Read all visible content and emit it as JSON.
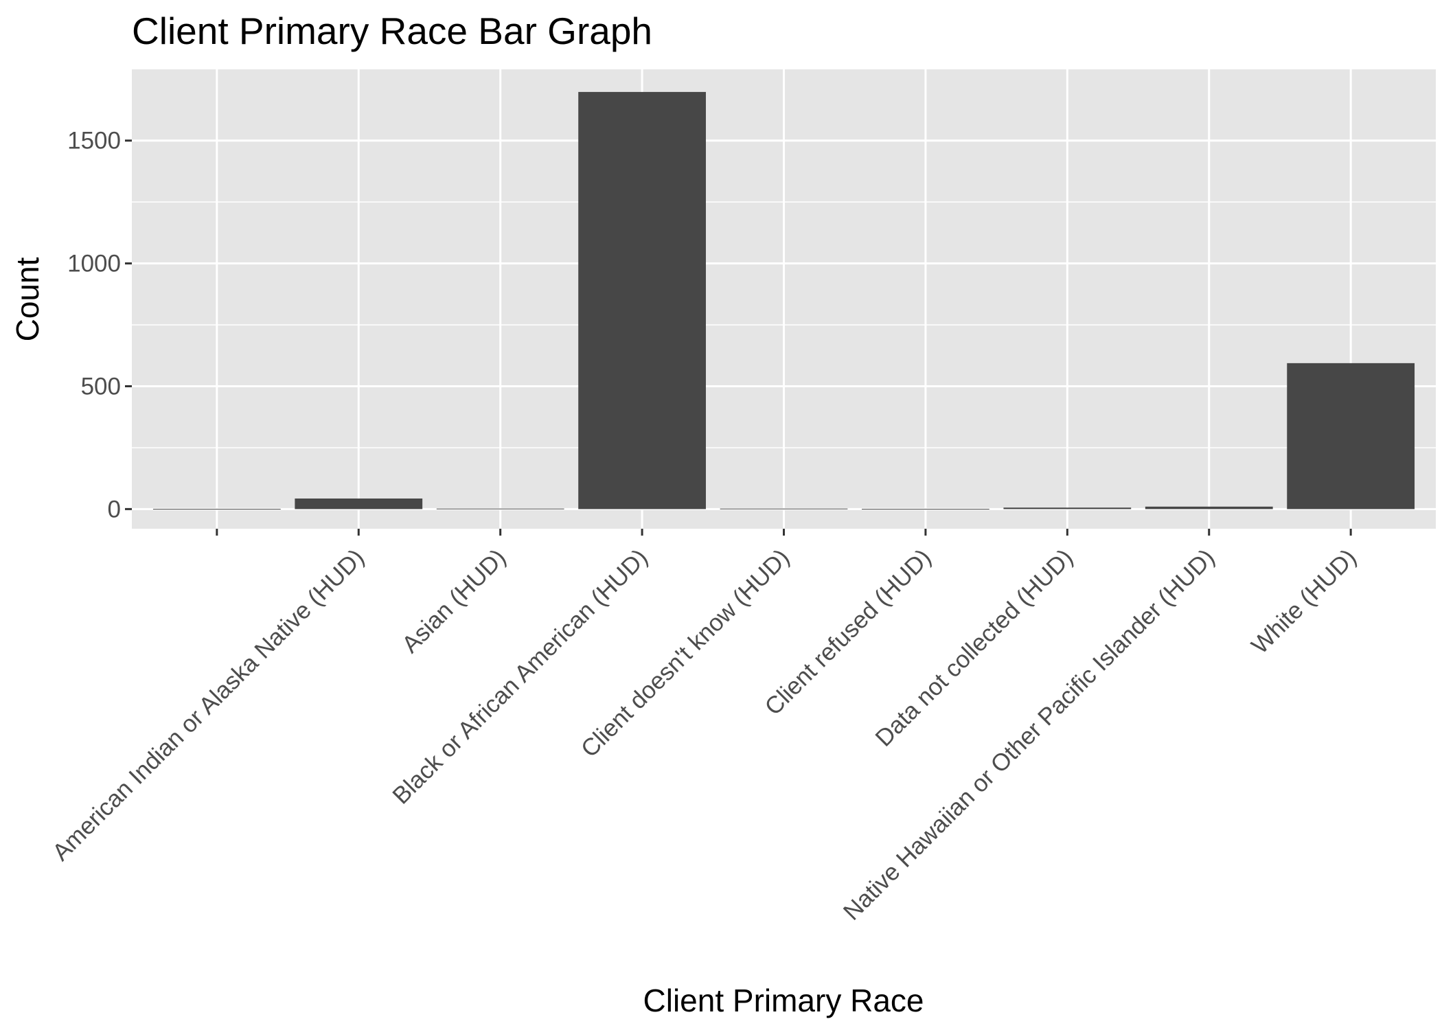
{
  "chart_data": {
    "type": "bar",
    "title": "Client Primary Race Bar Graph",
    "xlabel": "Client Primary Race",
    "ylabel": "Count",
    "categories": [
      "",
      "American Indian or Alaska Native (HUD)",
      "Asian (HUD)",
      "Black or African American (HUD)",
      "Client doesn't know (HUD)",
      "Client refused (HUD)",
      "Data not collected (HUD)",
      "Native Hawaiian or Other Pacific Islander (HUD)",
      "White (HUD)"
    ],
    "values": [
      1,
      43,
      2,
      1698,
      2,
      1,
      6,
      10,
      594
    ],
    "ylim": [
      -80,
      1790
    ],
    "yticks": [
      0,
      500,
      1000,
      1500
    ],
    "ytick_labels": [
      "0",
      "500",
      "1000",
      "1500"
    ],
    "grid": true,
    "legend": "none",
    "colors": {
      "bar": "#474747",
      "panel": "#e5e5e5",
      "grid": "#ffffff",
      "tick_text": "#4d4d4d",
      "tick_mark": "#333333"
    }
  }
}
